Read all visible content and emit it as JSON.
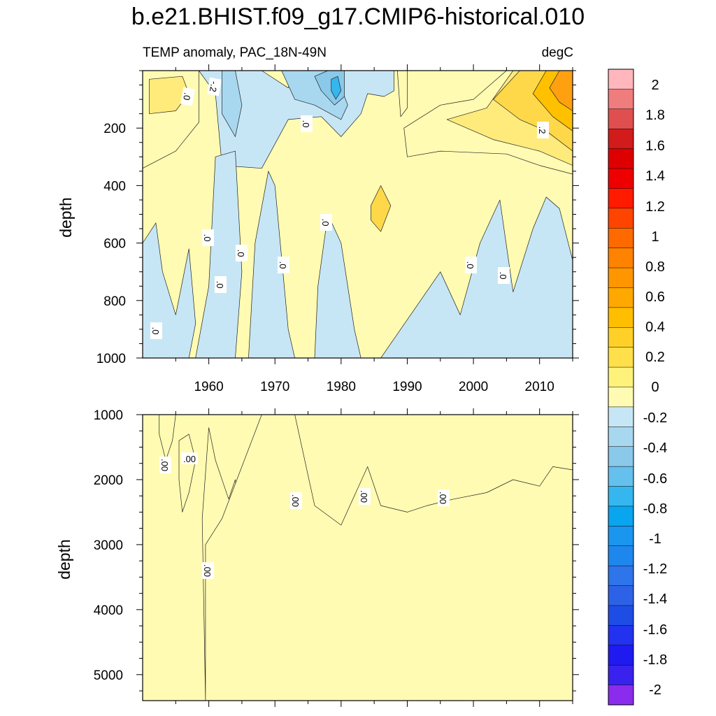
{
  "chart_data": {
    "type": "heatmap",
    "title": "b.e21.BHIST.f09_g17.CMIP6-historical.010",
    "subtitle_left": "TEMP anomaly, PAC_18N-49N",
    "subtitle_right": "degC",
    "xlim": [
      1950,
      2015
    ],
    "x_tick_labels": [
      "1960",
      "1970",
      "1980",
      "1990",
      "2000",
      "2010"
    ],
    "panels": [
      {
        "name": "upper",
        "ylabel": "depth",
        "ylim": [
          0,
          1000
        ],
        "y_tick_labels": [
          "200",
          "400",
          "600",
          "800",
          "1000"
        ],
        "contour_labels": [
          ".0",
          ".0",
          "-.2",
          ".0",
          ".0",
          ".0",
          ".0",
          ".0",
          ".0",
          ".0",
          ".0",
          ".2"
        ],
        "regions": [
          {
            "level": 0.1,
            "points": [
              [
                1950,
                0
              ],
              [
                1958.5,
                0
              ],
              [
                1958.5,
                180
              ],
              [
                1955,
                280
              ],
              [
                1950,
                340
              ]
            ]
          },
          {
            "level": 0.1,
            "points": [
              [
                1988.5,
                0
              ],
              [
                1990,
                0
              ],
              [
                1990,
                130
              ],
              [
                1989,
                160
              ]
            ]
          },
          {
            "level": 0.1,
            "points": [
              [
                1989.5,
                200
              ],
              [
                1995,
                120
              ],
              [
                2000,
                100
              ],
              [
                2005,
                0
              ],
              [
                2015,
                0
              ],
              [
                2015,
                360
              ],
              [
                2010,
                330
              ],
              [
                2005,
                290
              ],
              [
                1995,
                280
              ],
              [
                1990,
                300
              ]
            ]
          },
          {
            "level": 0.3,
            "points": [
              [
                1996,
                170
              ],
              [
                2002,
                130
              ],
              [
                2006,
                0
              ],
              [
                2015,
                0
              ],
              [
                2015,
                330
              ],
              [
                2010,
                280
              ],
              [
                2003,
                240
              ]
            ]
          },
          {
            "level": 0.3,
            "points": [
              [
                1951,
                30
              ],
              [
                1956,
                20
              ],
              [
                1957,
                80
              ],
              [
                1955,
                140
              ],
              [
                1951,
                150
              ]
            ]
          },
          {
            "level": 0.5,
            "points": [
              [
                2003,
                100
              ],
              [
                2007,
                0
              ],
              [
                2015,
                0
              ],
              [
                2015,
                280
              ],
              [
                2011,
                210
              ],
              [
                2007,
                170
              ]
            ]
          },
          {
            "level": 0.5,
            "points": [
              [
                1984.5,
                470
              ],
              [
                1986,
                400
              ],
              [
                1987.5,
                470
              ],
              [
                1986,
                560
              ],
              [
                1984.5,
                520
              ]
            ]
          },
          {
            "level": 0.7,
            "points": [
              [
                2009,
                80
              ],
              [
                2011,
                0
              ],
              [
                2015,
                0
              ],
              [
                2015,
                210
              ],
              [
                2012,
                160
              ]
            ]
          },
          {
            "level": 0.8,
            "points": [
              [
                2011.5,
                60
              ],
              [
                2013,
                0
              ],
              [
                2015,
                0
              ],
              [
                2015,
                140
              ],
              [
                2013,
                110
              ]
            ]
          },
          {
            "level": -0.1,
            "points": [
              [
                1958.5,
                0
              ],
              [
                1968,
                0
              ],
              [
                1972,
                60
              ],
              [
                1973,
                0
              ],
              [
                1988,
                0
              ],
              [
                1988,
                70
              ],
              [
                1986.5,
                90
              ],
              [
                1984,
                80
              ],
              [
                1983,
                150
              ],
              [
                1980,
                230
              ],
              [
                1977,
                160
              ],
              [
                1972,
                170
              ],
              [
                1968,
                340
              ],
              [
                1962,
                330
              ],
              [
                1961,
                80
              ]
            ]
          },
          {
            "level": -0.1,
            "points": [
              [
                1950,
                600
              ],
              [
                1952,
                530
              ],
              [
                1953,
                700
              ],
              [
                1955,
                850
              ],
              [
                1957,
                620
              ],
              [
                1958,
                880
              ],
              [
                1957,
                1000
              ],
              [
                1950,
                1000
              ]
            ]
          },
          {
            "level": -0.1,
            "points": [
              [
                1958,
                1000
              ],
              [
                1960,
                750
              ],
              [
                1961,
                300
              ],
              [
                1964,
                280
              ],
              [
                1965,
                700
              ],
              [
                1964,
                1000
              ]
            ]
          },
          {
            "level": -0.1,
            "points": [
              [
                1966,
                1000
              ],
              [
                1967,
                600
              ],
              [
                1969,
                350
              ],
              [
                1970,
                400
              ],
              [
                1972,
                900
              ],
              [
                1973,
                1000
              ]
            ]
          },
          {
            "level": -0.1,
            "points": [
              [
                1976,
                1000
              ],
              [
                1976.5,
                750
              ],
              [
                1978,
                500
              ],
              [
                1980,
                600
              ],
              [
                1982,
                900
              ],
              [
                1983,
                1000
              ]
            ]
          },
          {
            "level": -0.1,
            "points": [
              [
                1986,
                1000
              ],
              [
                1992,
                800
              ],
              [
                1995,
                700
              ],
              [
                1998,
                850
              ],
              [
                2001,
                600
              ],
              [
                2004,
                450
              ],
              [
                2006,
                770
              ],
              [
                2009,
                550
              ],
              [
                2011,
                440
              ],
              [
                2013,
                480
              ],
              [
                2015,
                660
              ],
              [
                2015,
                1000
              ]
            ]
          },
          {
            "level": -0.3,
            "points": [
              [
                1962,
                0
              ],
              [
                1964,
                0
              ],
              [
                1965,
                120
              ],
              [
                1964,
                230
              ],
              [
                1962,
                150
              ]
            ]
          },
          {
            "level": -0.3,
            "points": [
              [
                1971,
                0
              ],
              [
                1979,
                0
              ],
              [
                1981,
                120
              ],
              [
                1980,
                170
              ],
              [
                1976,
                120
              ],
              [
                1973,
                100
              ]
            ]
          },
          {
            "level": -0.5,
            "points": [
              [
                1976,
                20
              ],
              [
                1978,
                0
              ],
              [
                1980.5,
                0
              ],
              [
                1980.5,
                90
              ],
              [
                1979,
                120
              ],
              [
                1977,
                70
              ]
            ]
          },
          {
            "level": -0.6,
            "points": [
              [
                1978.5,
                30
              ],
              [
                1979.5,
                20
              ],
              [
                1980,
                70
              ],
              [
                1979.2,
                100
              ],
              [
                1978.5,
                70
              ]
            ]
          }
        ]
      },
      {
        "name": "lower",
        "ylabel": "depth",
        "ylim": [
          1000,
          5400
        ],
        "y_tick_labels": [
          "1000",
          "2000",
          "3000",
          "4000",
          "5000"
        ],
        "contour_labels": [
          ".00",
          ".00",
          ".00",
          ".00",
          ".00",
          ".00"
        ],
        "regions": [
          {
            "level": 0.1,
            "points": [
              [
                1952.5,
                1000
              ],
              [
                1955,
                1000
              ],
              [
                1954.5,
                1400
              ],
              [
                1953.5,
                1700
              ],
              [
                1952.5,
                1300
              ]
            ]
          },
          {
            "level": 0.1,
            "points": [
              [
                1955.5,
                1400
              ],
              [
                1957,
                1300
              ],
              [
                1958,
                1700
              ],
              [
                1957,
                2200
              ],
              [
                1956,
                2500
              ],
              [
                1955.5,
                2000
              ]
            ]
          },
          {
            "level": 0.1,
            "points": [
              [
                1959,
                2600
              ],
              [
                1960,
                1200
              ],
              [
                1961,
                1700
              ],
              [
                1963,
                2300
              ],
              [
                1964,
                2000
              ],
              [
                1965,
                2900
              ],
              [
                1964,
                3200
              ],
              [
                1960,
                3600
              ],
              [
                1959.5,
                5400
              ]
            ]
          },
          {
            "level": 0.1,
            "points": [
              [
                1959.5,
                5400
              ],
              [
                1959.5,
                3000
              ],
              [
                1962,
                2600
              ],
              [
                1968,
                1000
              ],
              [
                1973,
                1000
              ],
              [
                1976,
                2400
              ],
              [
                1980,
                2700
              ],
              [
                1984,
                1800
              ],
              [
                1986,
                2400
              ],
              [
                1990,
                2500
              ],
              [
                1993,
                2400
              ],
              [
                1997,
                2300
              ],
              [
                2002,
                2200
              ],
              [
                2006,
                2000
              ],
              [
                2010,
                2100
              ],
              [
                2012,
                1800
              ],
              [
                2015,
                1850
              ],
              [
                2015,
                5400
              ]
            ]
          }
        ]
      }
    ],
    "colorbar": {
      "tick_labels": [
        "2",
        "1.8",
        "1.6",
        "1.4",
        "1.2",
        "1",
        "0.8",
        "0.6",
        "0.4",
        "0.2",
        "0",
        "-0.2",
        "-0.4",
        "-0.6",
        "-0.8",
        "-1",
        "-1.2",
        "-1.4",
        "-1.6",
        "-1.8",
        "-2"
      ],
      "colors": [
        "#ffb6bd",
        "#f07d7d",
        "#e04f4f",
        "#d21b1b",
        "#de0000",
        "#ee0000",
        "#ff1a00",
        "#ff4400",
        "#ff6a00",
        "#ff8200",
        "#ff9600",
        "#ffa800",
        "#ffbe00",
        "#ffd128",
        "#ffe04a",
        "#fff27a",
        "#fffbb2",
        "#c7e6f5",
        "#a8d8ef",
        "#8ac9e9",
        "#66c0ee",
        "#36b6ee",
        "#0aa5ef",
        "#1a96ef",
        "#1e87ee",
        "#2e74ea",
        "#2e62e6",
        "#1e4de6",
        "#2232ef",
        "#1f1aef",
        "#3a22ee",
        "#8a2bee"
      ]
    }
  }
}
